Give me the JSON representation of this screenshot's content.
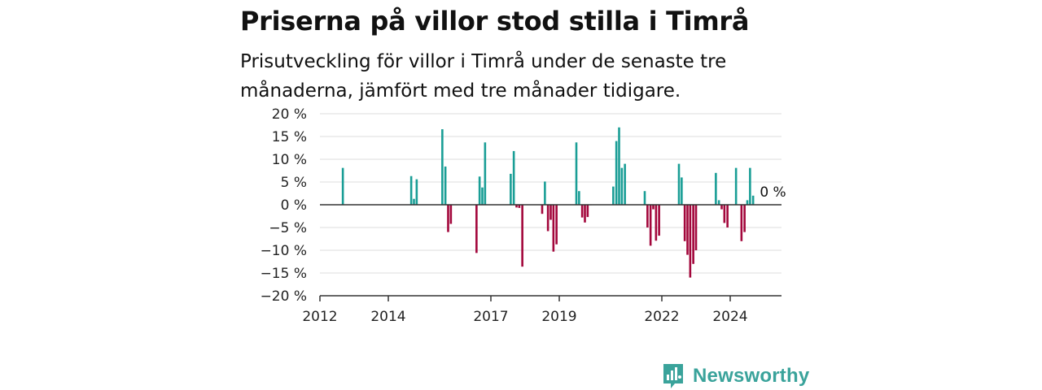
{
  "header": {
    "title": "Priserna på villor stod stilla i Timrå",
    "subtitle": "Prisutveckling för villor i Timrå under de senaste tre månaderna, jämfört med tre månader tidigare."
  },
  "brand": {
    "name": "Newsworthy",
    "icon": "newsworthy-logo-icon",
    "color": "#3aa39b"
  },
  "chart_data": {
    "type": "bar",
    "title": "Priserna på villor stod stilla i Timrå",
    "subtitle": "Prisutveckling för villor i Timrå under de senaste tre månaderna, jämfört med tre månader tidigare.",
    "xlabel": "",
    "ylabel": "",
    "ylim": [
      -20,
      20
    ],
    "xlim": [
      2012.0,
      2025.5
    ],
    "yticks": [
      20,
      15,
      10,
      5,
      0,
      -5,
      -10,
      -15,
      -20
    ],
    "ytick_labels": [
      "20 %",
      "15 %",
      "10 %",
      "5 %",
      "0 %",
      "−5 %",
      "−10 %",
      "−15 %",
      "−20 %"
    ],
    "xticks": [
      2012,
      2014,
      2017,
      2019,
      2022,
      2024
    ],
    "xtick_labels": [
      "2012",
      "2014",
      "2017",
      "2019",
      "2022",
      "2024"
    ],
    "grid": true,
    "colors": {
      "positive": "#1a9e96",
      "negative": "#a3073c",
      "zero_line": "#333333",
      "grid": "#dddddd"
    },
    "annotation": {
      "text": "0 %",
      "x": 2025.25,
      "y": 0
    },
    "series": [
      {
        "x": [
          2012.67,
          2014.67,
          2014.75,
          2014.83,
          2015.58,
          2015.67,
          2015.75,
          2015.83,
          2016.58,
          2016.67,
          2016.75,
          2016.83,
          2017.58,
          2017.67,
          2017.75,
          2017.83,
          2017.92,
          2018.5,
          2018.58,
          2018.67,
          2018.75,
          2018.83,
          2018.92,
          2019.5,
          2019.58,
          2019.67,
          2019.75,
          2019.83,
          2019.92,
          2020.58,
          2020.67,
          2020.75,
          2020.83,
          2020.92,
          2021.5,
          2021.58,
          2021.67,
          2021.75,
          2021.83,
          2021.92,
          2022.5,
          2022.58,
          2022.67,
          2022.75,
          2022.83,
          2022.92,
          2023.0,
          2023.08,
          2023.58,
          2023.67,
          2023.75,
          2023.83,
          2023.92,
          2024.17,
          2024.33,
          2024.42,
          2024.5,
          2024.58,
          2024.67,
          2024.75
        ],
        "values": [
          8.1,
          6.3,
          1.3,
          5.6,
          16.6,
          8.4,
          -6.0,
          -4.2,
          -10.6,
          6.2,
          3.8,
          13.7,
          6.8,
          11.8,
          -0.6,
          -0.7,
          -13.6,
          -2.0,
          5.1,
          -5.8,
          -3.3,
          -10.3,
          -8.7,
          13.7,
          3.0,
          -2.8,
          -3.9,
          -2.7,
          -0.1,
          4.0,
          14.0,
          17.0,
          8.1,
          9.0,
          3.0,
          -5.0,
          -9.0,
          -1.0,
          -7.9,
          -6.8,
          9.0,
          6.0,
          -8.0,
          -11.0,
          -16.0,
          -13.0,
          -10.0,
          0.1,
          7.0,
          1.0,
          -1.0,
          -4.0,
          -5.0,
          8.1,
          -8.0,
          -6.0,
          1.0,
          8.1,
          2.0,
          0.0
        ]
      }
    ]
  }
}
